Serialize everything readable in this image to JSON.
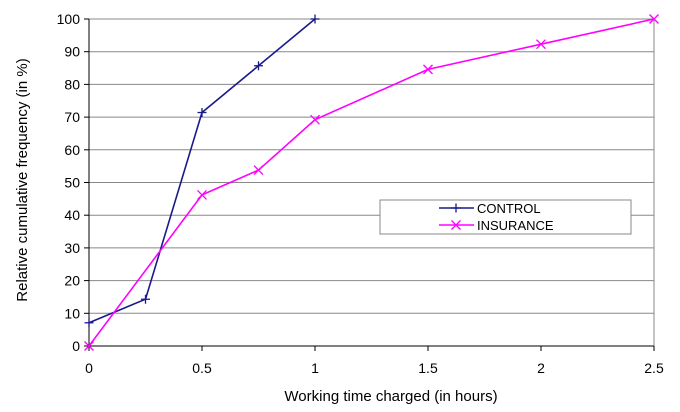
{
  "chart_data": {
    "type": "line",
    "title": "",
    "xlabel": "Working time charged (in hours)",
    "ylabel": "Relative cumulative frequency (in %)",
    "xlim": [
      0,
      2.5
    ],
    "ylim": [
      0,
      100
    ],
    "xticks": [
      "0",
      "0.5",
      "1",
      "1.5",
      "2",
      "2.5"
    ],
    "yticks": [
      "0",
      "10",
      "20",
      "30",
      "40",
      "50",
      "60",
      "70",
      "80",
      "90",
      "100"
    ],
    "grid": "horizontal",
    "legend_position": "right",
    "series": [
      {
        "name": "CONTROL",
        "color": "#1a1a8c",
        "marker": "plus",
        "x": [
          0,
          0.25,
          0.5,
          0.75,
          1.0
        ],
        "y": [
          7.1,
          14.3,
          71.4,
          85.7,
          100
        ]
      },
      {
        "name": "INSURANCE",
        "color": "#ff00ff",
        "marker": "cross",
        "x": [
          0,
          0.5,
          0.75,
          1.0,
          1.5,
          2.0,
          2.5
        ],
        "y": [
          0,
          46.2,
          53.8,
          69.2,
          84.6,
          92.3,
          100
        ]
      }
    ]
  }
}
